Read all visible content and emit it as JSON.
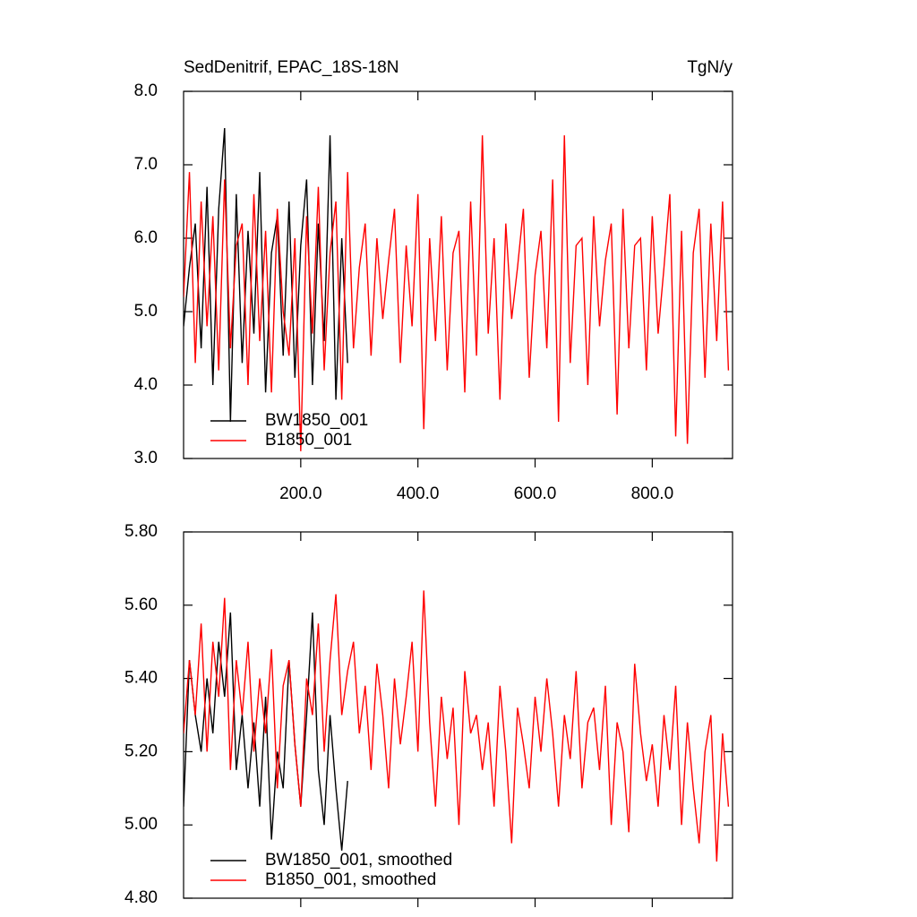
{
  "chart_data": [
    {
      "type": "line",
      "title": "SedDenitrif, EPAC_18S-18N",
      "units": "TgN/y",
      "xlim": [
        0,
        937
      ],
      "xticks": [
        {
          "value": 200,
          "label": "200.0"
        },
        {
          "value": 400,
          "label": "400.0"
        },
        {
          "value": 600,
          "label": "600.0"
        },
        {
          "value": 800,
          "label": "800.0"
        }
      ],
      "ylim": [
        3,
        8
      ],
      "yticks": [
        {
          "value": 3,
          "label": "3.0"
        },
        {
          "value": 4,
          "label": "4.0"
        },
        {
          "value": 5,
          "label": "5.0"
        },
        {
          "value": 6,
          "label": "6.0"
        },
        {
          "value": 7,
          "label": "7.0"
        },
        {
          "value": 8,
          "label": "8.0"
        }
      ],
      "series": [
        {
          "name": "BW1850_001",
          "color": "#000000",
          "x": [
            0,
            10,
            20,
            30,
            40,
            50,
            60,
            70,
            80,
            90,
            100,
            110,
            120,
            130,
            140,
            150,
            160,
            170,
            180,
            190,
            200,
            210,
            220,
            230,
            240,
            250,
            260,
            270,
            280
          ],
          "values": [
            4.8,
            5.6,
            6.2,
            4.5,
            6.7,
            4.0,
            6.4,
            7.5,
            3.5,
            6.6,
            4.3,
            6.1,
            4.7,
            6.9,
            3.9,
            5.8,
            6.3,
            4.4,
            6.5,
            4.1,
            5.9,
            6.8,
            4.0,
            6.2,
            4.6,
            7.4,
            3.8,
            6.0,
            4.3
          ]
        },
        {
          "name": "B1850_001",
          "color": "#ff0000",
          "x": [
            0,
            10,
            20,
            30,
            40,
            50,
            60,
            70,
            80,
            90,
            100,
            110,
            120,
            130,
            140,
            150,
            160,
            170,
            180,
            190,
            200,
            210,
            220,
            230,
            240,
            250,
            260,
            270,
            280,
            290,
            300,
            310,
            320,
            330,
            340,
            350,
            360,
            370,
            380,
            390,
            400,
            410,
            420,
            430,
            440,
            450,
            460,
            470,
            480,
            490,
            500,
            510,
            520,
            530,
            540,
            550,
            560,
            570,
            580,
            590,
            600,
            610,
            620,
            630,
            640,
            650,
            660,
            670,
            680,
            690,
            700,
            710,
            720,
            730,
            740,
            750,
            760,
            770,
            780,
            790,
            800,
            810,
            820,
            830,
            840,
            850,
            860,
            870,
            880,
            890,
            900,
            910,
            920,
            930
          ],
          "values": [
            5.2,
            6.9,
            4.3,
            6.5,
            4.8,
            6.3,
            4.2,
            6.8,
            4.5,
            5.9,
            6.2,
            4.0,
            6.6,
            4.6,
            6.1,
            3.9,
            6.4,
            5.0,
            4.4,
            6.0,
            3.1,
            6.3,
            4.7,
            6.7,
            4.2,
            5.8,
            6.5,
            3.8,
            6.9,
            4.5,
            5.6,
            6.2,
            4.4,
            6.0,
            4.9,
            5.7,
            6.4,
            4.3,
            5.9,
            4.8,
            6.6,
            3.4,
            6.0,
            4.6,
            6.3,
            4.2,
            5.8,
            6.1,
            3.9,
            6.5,
            4.4,
            7.4,
            4.7,
            6.0,
            3.8,
            6.2,
            4.9,
            5.6,
            6.4,
            4.1,
            5.5,
            6.1,
            4.5,
            6.8,
            3.5,
            7.4,
            4.3,
            5.9,
            6.0,
            4.0,
            6.3,
            4.8,
            5.7,
            6.2,
            3.6,
            6.4,
            4.5,
            5.9,
            6.0,
            4.2,
            6.3,
            4.7,
            5.6,
            6.6,
            3.3,
            6.1,
            3.2,
            5.8,
            6.4,
            4.1,
            6.2,
            4.6,
            6.5,
            4.2
          ]
        }
      ]
    },
    {
      "type": "line",
      "xlim": [
        0,
        937
      ],
      "ylim": [
        4.8,
        5.8
      ],
      "yticks": [
        {
          "value": 4.8,
          "label": "4.80"
        },
        {
          "value": 5.0,
          "label": "5.00"
        },
        {
          "value": 5.2,
          "label": "5.20"
        },
        {
          "value": 5.4,
          "label": "5.40"
        },
        {
          "value": 5.6,
          "label": "5.60"
        },
        {
          "value": 5.8,
          "label": "5.80"
        }
      ],
      "series": [
        {
          "name": "BW1850_001, smoothed",
          "color": "#000000",
          "x": [
            0,
            10,
            20,
            30,
            40,
            50,
            60,
            70,
            80,
            90,
            100,
            110,
            120,
            130,
            140,
            150,
            160,
            170,
            180,
            190,
            200,
            210,
            220,
            230,
            240,
            250,
            260,
            270,
            280
          ],
          "values": [
            5.05,
            5.45,
            5.3,
            5.2,
            5.4,
            5.25,
            5.5,
            5.35,
            5.58,
            5.15,
            5.3,
            5.1,
            5.28,
            5.05,
            5.35,
            4.96,
            5.2,
            5.1,
            5.45,
            5.22,
            5.05,
            5.3,
            5.58,
            5.15,
            5.0,
            5.3,
            5.1,
            4.93,
            5.12
          ]
        },
        {
          "name": "B1850_001, smoothed",
          "color": "#ff0000",
          "x": [
            0,
            10,
            20,
            30,
            40,
            50,
            60,
            70,
            80,
            90,
            100,
            110,
            120,
            130,
            140,
            150,
            160,
            170,
            180,
            190,
            200,
            210,
            220,
            230,
            240,
            250,
            260,
            270,
            280,
            290,
            300,
            310,
            320,
            330,
            340,
            350,
            360,
            370,
            380,
            390,
            400,
            410,
            420,
            430,
            440,
            450,
            460,
            470,
            480,
            490,
            500,
            510,
            520,
            530,
            540,
            550,
            560,
            570,
            580,
            590,
            600,
            610,
            620,
            630,
            640,
            650,
            660,
            670,
            680,
            690,
            700,
            710,
            720,
            730,
            740,
            750,
            760,
            770,
            780,
            790,
            800,
            810,
            820,
            830,
            840,
            850,
            860,
            870,
            880,
            890,
            900,
            910,
            920,
            930
          ],
          "values": [
            5.25,
            5.45,
            5.3,
            5.55,
            5.2,
            5.5,
            5.35,
            5.62,
            5.15,
            5.45,
            5.3,
            5.5,
            5.2,
            5.4,
            5.25,
            5.48,
            5.1,
            5.38,
            5.45,
            5.22,
            5.05,
            5.4,
            5.3,
            5.55,
            5.2,
            5.45,
            5.63,
            5.3,
            5.42,
            5.5,
            5.25,
            5.38,
            5.15,
            5.44,
            5.3,
            5.1,
            5.4,
            5.22,
            5.35,
            5.5,
            5.2,
            5.64,
            5.28,
            5.05,
            5.35,
            5.18,
            5.32,
            5.0,
            5.42,
            5.25,
            5.3,
            5.15,
            5.28,
            5.05,
            5.38,
            5.2,
            4.95,
            5.32,
            5.22,
            5.1,
            5.35,
            5.2,
            5.4,
            5.25,
            5.05,
            5.3,
            5.18,
            5.42,
            5.1,
            5.28,
            5.32,
            5.15,
            5.38,
            5.0,
            5.28,
            5.2,
            4.98,
            5.44,
            5.25,
            5.12,
            5.22,
            5.05,
            5.3,
            5.15,
            5.38,
            5.0,
            5.28,
            5.1,
            4.95,
            5.2,
            5.3,
            4.9,
            5.25,
            5.05
          ]
        }
      ]
    }
  ]
}
